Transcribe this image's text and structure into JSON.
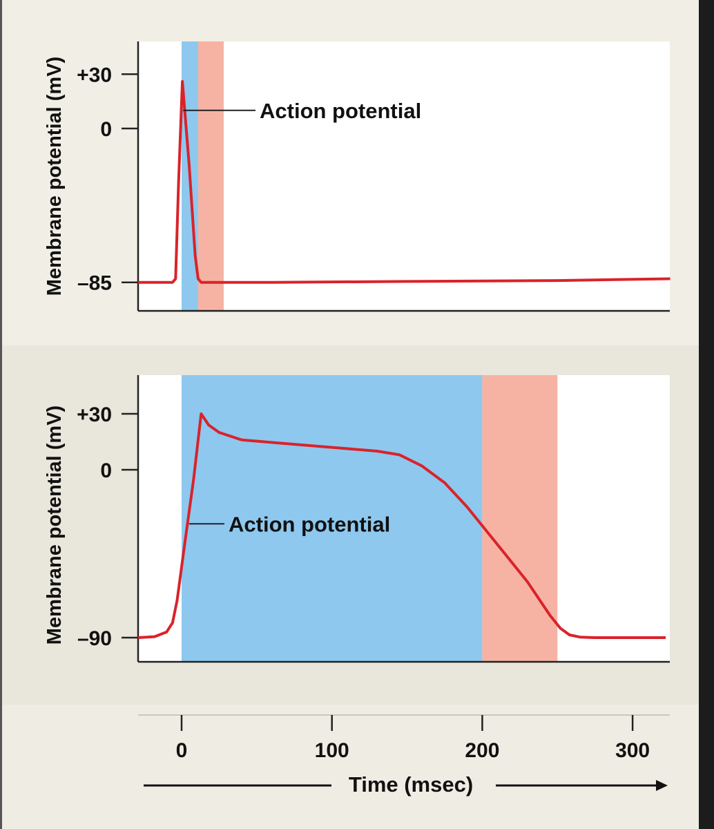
{
  "chart_data": [
    {
      "type": "line",
      "ylabel": "Membrane potential (mV)",
      "yticks": [
        "+30",
        "0",
        "–85"
      ],
      "ytick_values": [
        30,
        0,
        -85
      ],
      "xlim": [
        -29,
        325
      ],
      "ylim": [
        -100,
        50
      ],
      "annotation": "Action potential",
      "annotation_point": [
        1,
        10
      ],
      "shaded_regions": [
        {
          "from": 0,
          "to": 11,
          "color": "#8ec8ee"
        },
        {
          "from": 11,
          "to": 28,
          "color": "#f6b3a3"
        }
      ],
      "line_color": "#d9232a",
      "series": [
        {
          "x": [
            -29,
            -6,
            -4,
            -2,
            0.5,
            5,
            9,
            11,
            13,
            60,
            150,
            250,
            325
          ],
          "y": [
            -85,
            -85,
            -83,
            -30,
            26,
            -20,
            -70,
            -83,
            -85,
            -85,
            -84.5,
            -84,
            -83
          ]
        }
      ]
    },
    {
      "type": "line",
      "ylabel": "Membrane potential (mV)",
      "yticks": [
        "+30",
        "0",
        "–90"
      ],
      "ytick_values": [
        30,
        0,
        -90
      ],
      "xlim": [
        -29,
        325
      ],
      "ylim": [
        -102,
        50
      ],
      "annotation": "Action potential",
      "annotation_point": [
        5,
        -29
      ],
      "shaded_regions": [
        {
          "from": 0,
          "to": 200,
          "color": "#8ec8ee"
        },
        {
          "from": 200,
          "to": 250,
          "color": "#f6b3a3"
        }
      ],
      "line_color": "#d9232a",
      "series": [
        {
          "x": [
            -29,
            -18,
            -10,
            -6,
            -3,
            2,
            8,
            13,
            18,
            25,
            40,
            70,
            100,
            130,
            145,
            160,
            175,
            190,
            200,
            215,
            230,
            245,
            252,
            258,
            265,
            275,
            322
          ],
          "y": [
            -90,
            -89.5,
            -87,
            -82,
            -70,
            -40,
            -5,
            30,
            24,
            20,
            16,
            14,
            12,
            10,
            8,
            2,
            -7,
            -20,
            -30,
            -45,
            -60,
            -78,
            -85,
            -88.5,
            -89.7,
            -90,
            -90
          ]
        }
      ]
    }
  ],
  "xaxis": {
    "label": "Time (msec)",
    "ticks": [
      "0",
      "100",
      "200",
      "300"
    ],
    "tick_values": [
      0,
      100,
      200,
      300
    ]
  }
}
